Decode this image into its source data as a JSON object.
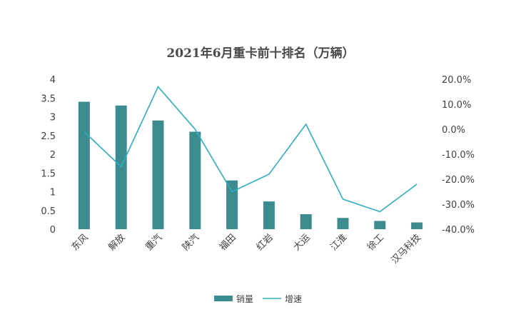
{
  "chart_data": {
    "type": "bar",
    "title": "2021年6月重卡前十排名（万辆）",
    "categories": [
      "东风",
      "解放",
      "重汽",
      "陕汽",
      "福田",
      "红岩",
      "大运",
      "江淮",
      "徐工",
      "汉马科技"
    ],
    "series": [
      {
        "name": "销量",
        "type": "bar",
        "axis": "left",
        "color": "#3c8c8f",
        "values": [
          3.4,
          3.3,
          2.9,
          2.6,
          1.3,
          0.74,
          0.4,
          0.3,
          0.22,
          0.18
        ]
      },
      {
        "name": "增速",
        "type": "line",
        "axis": "right",
        "color": "#2eaec1",
        "values": [
          -1.0,
          -15.0,
          17.0,
          0.0,
          -25.0,
          -18.0,
          2.0,
          -28.0,
          -33.0,
          -22.0
        ]
      }
    ],
    "y_left": {
      "min": 0,
      "max": 4,
      "ticks": [
        "0",
        "0.5",
        "1",
        "1.5",
        "2",
        "2.5",
        "3",
        "3.5",
        "4"
      ]
    },
    "y_right": {
      "min": -40,
      "max": 20,
      "ticks": [
        "-40.0%",
        "-30.0%",
        "-20.0%",
        "-10.0%",
        "0.0%",
        "10.0%",
        "20.0%"
      ]
    },
    "grid": false,
    "legend_position": "bottom"
  }
}
